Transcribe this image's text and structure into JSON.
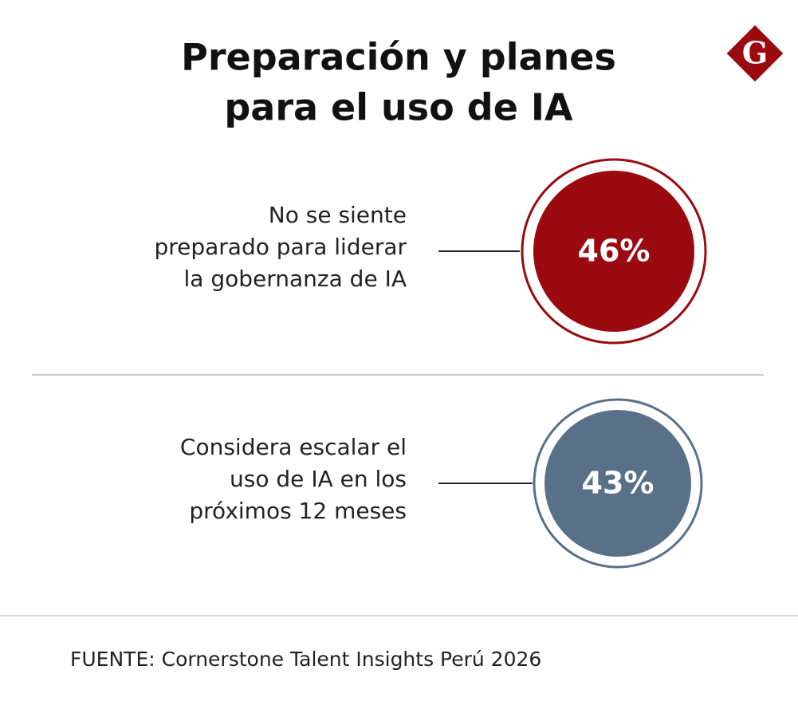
{
  "title": [
    "Preparación y planes",
    "para el uso de IA"
  ],
  "logo": "G",
  "items": [
    {
      "label": [
        "No se siente",
        "preparado para liderar",
        "la gobernanza de IA"
      ],
      "value": "46%"
    },
    {
      "label": [
        "Considera escalar el",
        "uso de IA en los",
        "próximos 12 meses"
      ],
      "value": "43%"
    }
  ],
  "source": "FUENTE: Cornerstone Talent Insights Perú 2026"
}
